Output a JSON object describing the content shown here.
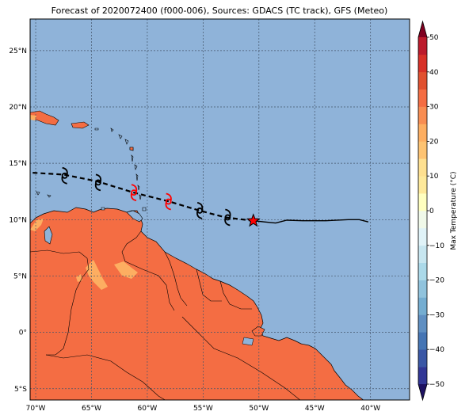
{
  "title": "Forecast of 2020072400 (f000-006), Sources: GDACS (TC track), GFS (Meteo)",
  "map": {
    "lon_range": [
      -70.5,
      -36.5
    ],
    "lat_range": [
      -6,
      27.8
    ],
    "lon_ticks": [
      -70,
      -65,
      -60,
      -55,
      -50,
      -45,
      -40
    ],
    "lon_tick_labels": [
      "70°W",
      "65°W",
      "60°W",
      "55°W",
      "50°W",
      "45°W",
      "40°W"
    ],
    "lat_ticks": [
      25,
      20,
      15,
      10,
      5,
      0,
      -5
    ],
    "lat_tick_labels": [
      "25°N",
      "20°N",
      "15°N",
      "10°N",
      "5°N",
      "0°",
      "5°S"
    ],
    "gridlines": true,
    "colors": {
      "ocean": "#8fb3d9",
      "land": "#f46d43",
      "cool_land": "#fdae61",
      "track_past": "#000000",
      "forecast": "#ff0000"
    }
  },
  "track": {
    "observed": [
      [
        -50.5,
        9.9
      ],
      [
        -49.5,
        9.8
      ],
      [
        -48.5,
        9.7
      ],
      [
        -47.5,
        9.95
      ],
      [
        -46,
        9.9
      ],
      [
        -44,
        9.9
      ],
      [
        -42,
        10.0
      ],
      [
        -41,
        10.0
      ],
      [
        -40.2,
        9.8
      ]
    ],
    "forecast": [
      [
        -50.5,
        9.9
      ],
      [
        -53,
        10.2
      ],
      [
        -55.3,
        10.8
      ],
      [
        -58,
        11.6
      ],
      [
        -61.2,
        12.4
      ],
      [
        -64.5,
        13.4
      ],
      [
        -67.5,
        14.0
      ],
      [
        -71,
        14.2
      ]
    ],
    "current_position": [
      -50.5,
      9.9
    ],
    "storm_symbols": [
      {
        "lon": -52.8,
        "lat": 10.2,
        "color": "black"
      },
      {
        "lon": -55.3,
        "lat": 10.8,
        "color": "black"
      },
      {
        "lon": -58.1,
        "lat": 11.6,
        "color": "red"
      },
      {
        "lon": -61.2,
        "lat": 12.4,
        "color": "red"
      },
      {
        "lon": -64.4,
        "lat": 13.3,
        "color": "black"
      },
      {
        "lon": -67.4,
        "lat": 13.9,
        "color": "black"
      }
    ]
  },
  "colorbar": {
    "label": "Max Temperature (°C)",
    "levels": [
      -50,
      -45,
      -40,
      -35,
      -30,
      -25,
      -20,
      -15,
      -10,
      -5,
      0,
      5,
      10,
      15,
      20,
      25,
      30,
      35,
      40,
      45,
      50
    ],
    "tick_labels": [
      "50",
      "40",
      "30",
      "20",
      "10",
      "0",
      "−10",
      "−20",
      "−30",
      "−40",
      "−50"
    ],
    "colors": [
      "#313695",
      "#3a57a5",
      "#4575b4",
      "#5f8fc2",
      "#74add1",
      "#90c3dd",
      "#abd9e9",
      "#c7e6f0",
      "#e0f3f8",
      "#f0f9e9",
      "#ffffbf",
      "#fee99a",
      "#fee090",
      "#fdc372",
      "#fdae61",
      "#f88d52",
      "#f46d43",
      "#e0502f",
      "#d73027",
      "#bb1a2b",
      "#a50026"
    ],
    "under_color": "#1d1161",
    "over_color": "#7f0020"
  }
}
